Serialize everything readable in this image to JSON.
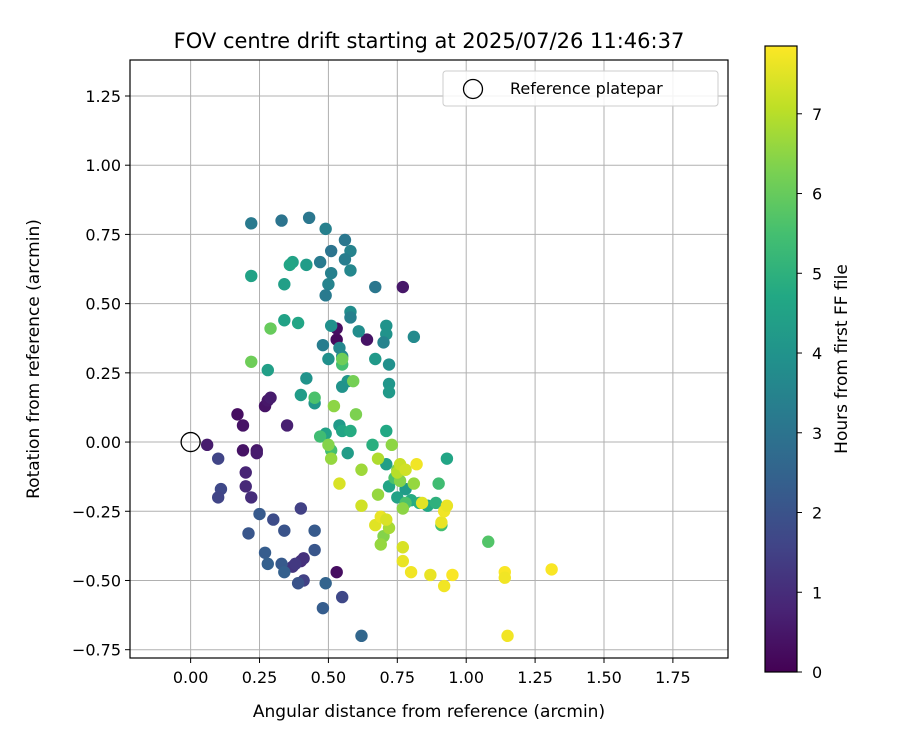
{
  "chart_data": {
    "type": "scatter",
    "title": "FOV centre drift starting at 2025/07/26 11:46:37",
    "xlabel": "Angular distance from reference (arcmin)",
    "ylabel": "Rotation from reference (arcmin)",
    "xlim": [
      -0.22,
      1.95
    ],
    "ylim": [
      -0.78,
      1.38
    ],
    "x_ticks": [
      0.0,
      0.25,
      0.5,
      0.75,
      1.0,
      1.25,
      1.5,
      1.75
    ],
    "x_tick_labels": [
      "0.00",
      "0.25",
      "0.50",
      "0.75",
      "1.00",
      "1.25",
      "1.50",
      "1.75"
    ],
    "y_ticks": [
      -0.75,
      -0.5,
      -0.25,
      0.0,
      0.25,
      0.5,
      0.75,
      1.0,
      1.25
    ],
    "y_tick_labels": [
      "−0.75",
      "−0.50",
      "−0.25",
      "0.00",
      "0.25",
      "0.50",
      "0.75",
      "1.00",
      "1.25"
    ],
    "grid": true,
    "legend": {
      "placement": "top-right",
      "entries": [
        {
          "label": "Reference platepar",
          "marker": "open-circle"
        }
      ]
    },
    "reference_point": {
      "x": 0.0,
      "y": 0.0
    },
    "colorbar": {
      "label": "Hours from first FF file",
      "range": [
        0,
        7.85
      ],
      "ticks": [
        0,
        1,
        2,
        3,
        4,
        5,
        6,
        7
      ],
      "tick_labels": [
        "0",
        "1",
        "2",
        "3",
        "4",
        "5",
        "6",
        "7"
      ],
      "colormap": "viridis"
    },
    "points": [
      {
        "x": 0.06,
        "y": -0.01,
        "c": 0.6
      },
      {
        "x": 0.19,
        "y": -0.03,
        "c": 0.4
      },
      {
        "x": 0.24,
        "y": -0.03,
        "c": 0.5
      },
      {
        "x": 0.24,
        "y": -0.04,
        "c": 0.6
      },
      {
        "x": 0.17,
        "y": 0.1,
        "c": 0.3
      },
      {
        "x": 0.19,
        "y": 0.06,
        "c": 0.4
      },
      {
        "x": 0.27,
        "y": 0.13,
        "c": 0.4
      },
      {
        "x": 0.28,
        "y": 0.15,
        "c": 0.5
      },
      {
        "x": 0.29,
        "y": 0.16,
        "c": 0.6
      },
      {
        "x": 0.35,
        "y": 0.06,
        "c": 0.7
      },
      {
        "x": 0.53,
        "y": 0.37,
        "c": 0.2
      },
      {
        "x": 0.53,
        "y": 0.41,
        "c": 0.3
      },
      {
        "x": 0.64,
        "y": 0.37,
        "c": 0.4
      },
      {
        "x": 0.77,
        "y": 0.56,
        "c": 0.5
      },
      {
        "x": 0.53,
        "y": -0.47,
        "c": 0.3
      },
      {
        "x": 0.2,
        "y": -0.11,
        "c": 0.8
      },
      {
        "x": 0.2,
        "y": -0.16,
        "c": 0.9
      },
      {
        "x": 0.22,
        "y": -0.2,
        "c": 1.0
      },
      {
        "x": 0.4,
        "y": -0.43,
        "c": 1.0
      },
      {
        "x": 0.41,
        "y": -0.42,
        "c": 1.1
      },
      {
        "x": 0.37,
        "y": -0.45,
        "c": 1.2
      },
      {
        "x": 0.38,
        "y": -0.44,
        "c": 1.3
      },
      {
        "x": 0.1,
        "y": -0.06,
        "c": 1.6
      },
      {
        "x": 0.11,
        "y": -0.17,
        "c": 1.7
      },
      {
        "x": 0.1,
        "y": -0.2,
        "c": 1.6
      },
      {
        "x": 0.4,
        "y": -0.24,
        "c": 1.5
      },
      {
        "x": 0.41,
        "y": -0.5,
        "c": 1.5
      },
      {
        "x": 0.55,
        "y": -0.56,
        "c": 1.7
      },
      {
        "x": 0.3,
        "y": -0.28,
        "c": 1.8
      },
      {
        "x": 0.25,
        "y": -0.26,
        "c": 2.2
      },
      {
        "x": 0.21,
        "y": -0.33,
        "c": 2.1
      },
      {
        "x": 0.34,
        "y": -0.32,
        "c": 2.0
      },
      {
        "x": 0.45,
        "y": -0.32,
        "c": 2.2
      },
      {
        "x": 0.45,
        "y": -0.39,
        "c": 2.1
      },
      {
        "x": 0.27,
        "y": -0.4,
        "c": 2.3
      },
      {
        "x": 0.28,
        "y": -0.44,
        "c": 2.4
      },
      {
        "x": 0.33,
        "y": -0.44,
        "c": 2.2
      },
      {
        "x": 0.34,
        "y": -0.47,
        "c": 2.4
      },
      {
        "x": 0.39,
        "y": -0.51,
        "c": 2.0
      },
      {
        "x": 0.49,
        "y": -0.51,
        "c": 2.5
      },
      {
        "x": 0.48,
        "y": -0.6,
        "c": 2.3
      },
      {
        "x": 0.62,
        "y": -0.7,
        "c": 2.6
      },
      {
        "x": 0.22,
        "y": 0.79,
        "c": 3.2
      },
      {
        "x": 0.33,
        "y": 0.8,
        "c": 3.0
      },
      {
        "x": 0.43,
        "y": 0.81,
        "c": 3.1
      },
      {
        "x": 0.49,
        "y": 0.77,
        "c": 3.4
      },
      {
        "x": 0.56,
        "y": 0.73,
        "c": 3.1
      },
      {
        "x": 0.51,
        "y": 0.69,
        "c": 3.0
      },
      {
        "x": 0.58,
        "y": 0.69,
        "c": 3.5
      },
      {
        "x": 0.47,
        "y": 0.65,
        "c": 3.2
      },
      {
        "x": 0.56,
        "y": 0.66,
        "c": 3.3
      },
      {
        "x": 0.58,
        "y": 0.62,
        "c": 3.6
      },
      {
        "x": 0.51,
        "y": 0.61,
        "c": 3.4
      },
      {
        "x": 0.5,
        "y": 0.57,
        "c": 3.5
      },
      {
        "x": 0.67,
        "y": 0.56,
        "c": 3.1
      },
      {
        "x": 0.49,
        "y": 0.53,
        "c": 3.2
      },
      {
        "x": 0.58,
        "y": 0.47,
        "c": 3.8
      },
      {
        "x": 0.58,
        "y": 0.45,
        "c": 3.4
      },
      {
        "x": 0.51,
        "y": 0.42,
        "c": 3.9
      },
      {
        "x": 0.71,
        "y": 0.42,
        "c": 4.0
      },
      {
        "x": 0.71,
        "y": 0.39,
        "c": 4.0
      },
      {
        "x": 0.61,
        "y": 0.4,
        "c": 3.8
      },
      {
        "x": 0.81,
        "y": 0.38,
        "c": 3.7
      },
      {
        "x": 0.7,
        "y": 0.36,
        "c": 3.5
      },
      {
        "x": 0.48,
        "y": 0.35,
        "c": 3.3
      },
      {
        "x": 0.54,
        "y": 0.34,
        "c": 3.6
      },
      {
        "x": 0.55,
        "y": 0.31,
        "c": 3.7
      },
      {
        "x": 0.5,
        "y": 0.3,
        "c": 3.9
      },
      {
        "x": 0.67,
        "y": 0.3,
        "c": 4.2
      },
      {
        "x": 0.72,
        "y": 0.28,
        "c": 3.9
      },
      {
        "x": 0.57,
        "y": 0.22,
        "c": 4.1
      },
      {
        "x": 0.72,
        "y": 0.21,
        "c": 4.1
      },
      {
        "x": 0.55,
        "y": 0.2,
        "c": 4.0
      },
      {
        "x": 0.72,
        "y": 0.18,
        "c": 4.2
      },
      {
        "x": 0.42,
        "y": 0.23,
        "c": 4.0
      },
      {
        "x": 0.4,
        "y": 0.17,
        "c": 4.3
      },
      {
        "x": 0.45,
        "y": 0.14,
        "c": 4.1
      },
      {
        "x": 0.42,
        "y": 0.64,
        "c": 4.3
      },
      {
        "x": 0.37,
        "y": 0.65,
        "c": 4.5
      },
      {
        "x": 0.36,
        "y": 0.64,
        "c": 4.6
      },
      {
        "x": 0.22,
        "y": 0.6,
        "c": 4.5
      },
      {
        "x": 0.34,
        "y": 0.57,
        "c": 4.4
      },
      {
        "x": 0.34,
        "y": 0.44,
        "c": 4.5
      },
      {
        "x": 0.39,
        "y": 0.43,
        "c": 4.6
      },
      {
        "x": 0.28,
        "y": 0.26,
        "c": 4.4
      },
      {
        "x": 0.54,
        "y": 0.06,
        "c": 4.2
      },
      {
        "x": 0.55,
        "y": 0.04,
        "c": 4.6
      },
      {
        "x": 0.57,
        "y": -0.04,
        "c": 4.3
      },
      {
        "x": 0.49,
        "y": 0.03,
        "c": 4.5
      },
      {
        "x": 0.58,
        "y": 0.04,
        "c": 4.8
      },
      {
        "x": 0.71,
        "y": 0.04,
        "c": 4.7
      },
      {
        "x": 0.66,
        "y": -0.01,
        "c": 4.9
      },
      {
        "x": 0.71,
        "y": -0.08,
        "c": 4.4
      },
      {
        "x": 0.72,
        "y": -0.16,
        "c": 4.6
      },
      {
        "x": 0.78,
        "y": -0.17,
        "c": 4.3
      },
      {
        "x": 0.75,
        "y": -0.2,
        "c": 4.5
      },
      {
        "x": 0.8,
        "y": -0.21,
        "c": 4.8
      },
      {
        "x": 0.83,
        "y": -0.22,
        "c": 4.9
      },
      {
        "x": 0.86,
        "y": -0.23,
        "c": 4.7
      },
      {
        "x": 0.89,
        "y": -0.22,
        "c": 5.0
      },
      {
        "x": 0.93,
        "y": -0.06,
        "c": 4.6
      },
      {
        "x": 0.9,
        "y": -0.15,
        "c": 5.4
      },
      {
        "x": 0.55,
        "y": 0.28,
        "c": 5.5
      },
      {
        "x": 0.45,
        "y": 0.16,
        "c": 5.6
      },
      {
        "x": 0.47,
        "y": 0.02,
        "c": 5.4
      },
      {
        "x": 0.51,
        "y": -0.03,
        "c": 5.5
      },
      {
        "x": 0.74,
        "y": -0.13,
        "c": 5.6
      },
      {
        "x": 0.78,
        "y": -0.22,
        "c": 5.6
      },
      {
        "x": 0.91,
        "y": -0.3,
        "c": 5.5
      },
      {
        "x": 1.08,
        "y": -0.36,
        "c": 5.7
      },
      {
        "x": 0.29,
        "y": 0.41,
        "c": 6.0
      },
      {
        "x": 0.22,
        "y": 0.29,
        "c": 6.1
      },
      {
        "x": 0.55,
        "y": 0.3,
        "c": 6.1
      },
      {
        "x": 0.59,
        "y": 0.22,
        "c": 6.2
      },
      {
        "x": 0.6,
        "y": 0.1,
        "c": 6.3
      },
      {
        "x": 0.52,
        "y": 0.13,
        "c": 6.5
      },
      {
        "x": 0.51,
        "y": -0.06,
        "c": 6.6
      },
      {
        "x": 0.5,
        "y": -0.01,
        "c": 6.4
      },
      {
        "x": 0.62,
        "y": -0.1,
        "c": 6.7
      },
      {
        "x": 0.73,
        "y": -0.01,
        "c": 6.5
      },
      {
        "x": 0.75,
        "y": -0.1,
        "c": 6.3
      },
      {
        "x": 0.76,
        "y": -0.14,
        "c": 6.4
      },
      {
        "x": 0.77,
        "y": -0.24,
        "c": 6.5
      },
      {
        "x": 0.68,
        "y": -0.19,
        "c": 6.6
      },
      {
        "x": 0.7,
        "y": -0.34,
        "c": 6.4
      },
      {
        "x": 0.69,
        "y": -0.37,
        "c": 6.6
      },
      {
        "x": 0.72,
        "y": -0.31,
        "c": 6.8
      },
      {
        "x": 0.81,
        "y": -0.15,
        "c": 6.6
      },
      {
        "x": 0.68,
        "y": -0.06,
        "c": 6.9
      },
      {
        "x": 0.75,
        "y": -0.11,
        "c": 7.0
      },
      {
        "x": 0.54,
        "y": -0.15,
        "c": 7.4
      },
      {
        "x": 0.62,
        "y": -0.23,
        "c": 7.3
      },
      {
        "x": 0.67,
        "y": -0.3,
        "c": 7.5
      },
      {
        "x": 0.69,
        "y": -0.27,
        "c": 7.6
      },
      {
        "x": 0.71,
        "y": -0.28,
        "c": 7.4
      },
      {
        "x": 0.76,
        "y": -0.08,
        "c": 7.2
      },
      {
        "x": 0.78,
        "y": -0.1,
        "c": 7.3
      },
      {
        "x": 0.82,
        "y": -0.08,
        "c": 7.7
      },
      {
        "x": 0.77,
        "y": -0.38,
        "c": 7.4
      },
      {
        "x": 0.77,
        "y": -0.43,
        "c": 7.6
      },
      {
        "x": 0.8,
        "y": -0.47,
        "c": 7.7
      },
      {
        "x": 0.84,
        "y": -0.22,
        "c": 7.5
      },
      {
        "x": 0.87,
        "y": -0.48,
        "c": 7.6
      },
      {
        "x": 0.91,
        "y": -0.29,
        "c": 7.6
      },
      {
        "x": 0.92,
        "y": -0.25,
        "c": 7.7
      },
      {
        "x": 0.93,
        "y": -0.23,
        "c": 7.6
      },
      {
        "x": 0.92,
        "y": -0.52,
        "c": 7.7
      },
      {
        "x": 0.95,
        "y": -0.48,
        "c": 7.8
      },
      {
        "x": 1.14,
        "y": -0.47,
        "c": 7.8
      },
      {
        "x": 1.14,
        "y": -0.49,
        "c": 7.7
      },
      {
        "x": 1.15,
        "y": -0.7,
        "c": 7.7
      },
      {
        "x": 1.31,
        "y": -0.46,
        "c": 7.8
      }
    ]
  }
}
